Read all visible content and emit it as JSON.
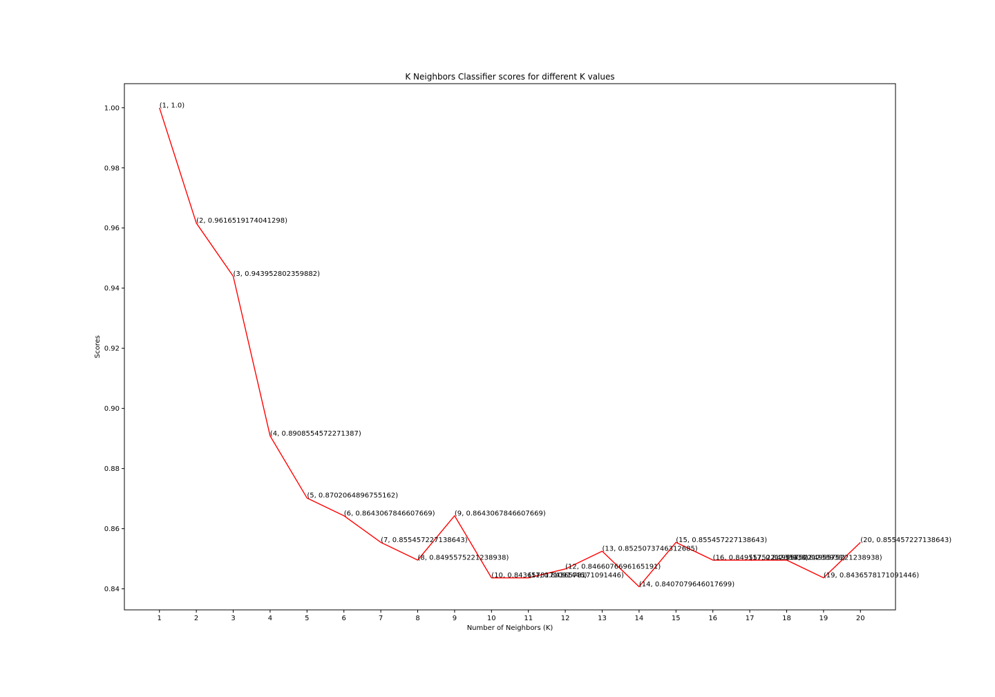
{
  "chart_data": {
    "type": "line",
    "title": "K Neighbors Classifier scores for different K values",
    "xlabel": "Number of Neighbors (K)",
    "ylabel": "Scores",
    "x": [
      1,
      2,
      3,
      4,
      5,
      6,
      7,
      8,
      9,
      10,
      11,
      12,
      13,
      14,
      15,
      16,
      17,
      18,
      19,
      20
    ],
    "series": [
      {
        "name": "",
        "color": "#ff0000",
        "values": [
          1.0,
          0.9616519174041298,
          0.943952802359882,
          0.8908554572271387,
          0.8702064896755162,
          0.8643067846607669,
          0.855457227138643,
          0.8495575221238938,
          0.8643067846607669,
          0.8436578171091446,
          0.8436578171091446,
          0.8466076696165191,
          0.8525073746312685,
          0.8407079646017699,
          0.855457227138643,
          0.8495575221238938,
          0.8495575221238938,
          0.8495575221238938,
          0.8436578171091446,
          0.855457227138643
        ]
      }
    ],
    "point_labels": [
      "(1, 1.0)",
      "(2, 0.9616519174041298)",
      "(3, 0.943952802359882)",
      "(4, 0.8908554572271387)",
      "(5, 0.8702064896755162)",
      "(6, 0.8643067846607669)",
      "(7, 0.855457227138643)",
      "(8, 0.8495575221238938)",
      "(9, 0.8643067846607669)",
      "(10, 0.8436578171091446)",
      "(11, 0.8436578171091446)",
      "(12, 0.8466076696165191)",
      "(13, 0.8525073746312685)",
      "(14, 0.8407079646017699)",
      "(15, 0.855457227138643)",
      "(16, 0.8495575221238938)",
      "(17, 0.8495575221238938)",
      "(18, 0.8495575221238938)",
      "(19, 0.8436578171091446)",
      "(20, 0.855457227138643)"
    ],
    "x_ticks": [
      1,
      2,
      3,
      4,
      5,
      6,
      7,
      8,
      9,
      10,
      11,
      12,
      13,
      14,
      15,
      16,
      17,
      18,
      19,
      20
    ],
    "y_ticks": [
      "0.84",
      "0.86",
      "0.88",
      "0.90",
      "0.92",
      "0.94",
      "0.96",
      "0.98",
      "1.00"
    ],
    "xlim": [
      0.05,
      20.95
    ],
    "ylim": [
      0.833,
      1.008
    ],
    "grid": false,
    "legend": "none"
  }
}
